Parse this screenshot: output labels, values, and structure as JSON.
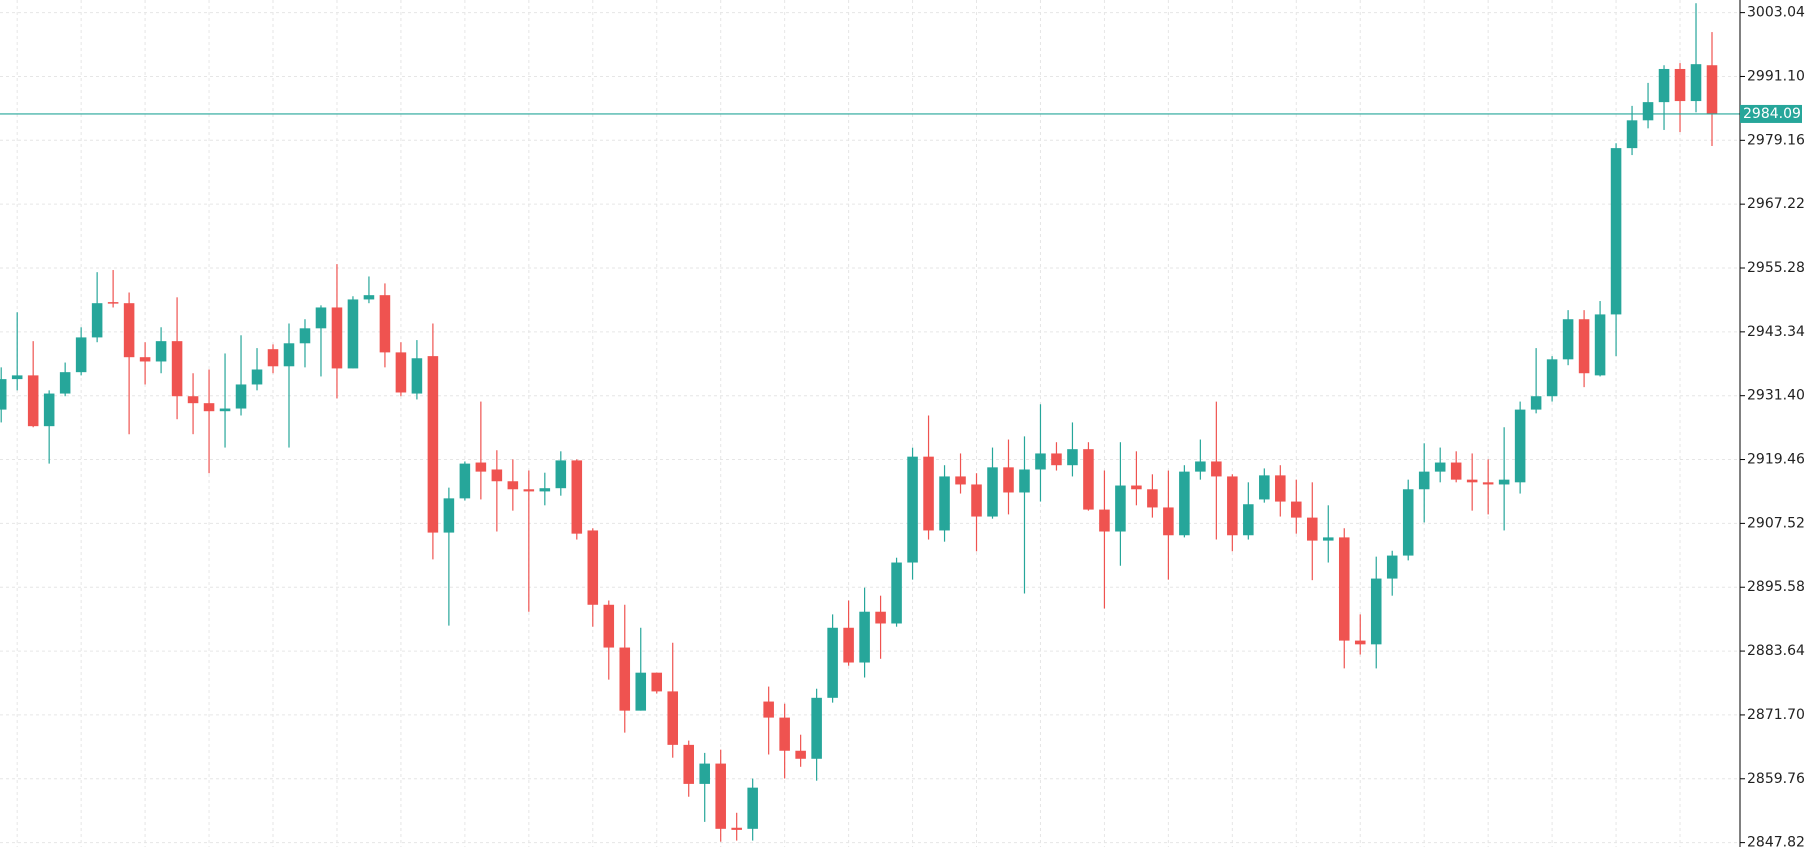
{
  "chart_data": {
    "type": "candlestick",
    "up_color": "#26a69a",
    "down_color": "#ef5350",
    "grid": true,
    "ylim": [
      2847.0,
      3005.4
    ],
    "yticks": [
      3003.04,
      {
        "value": 2991.1,
        "label": "2991.10"
      },
      2979.16,
      2967.22,
      2955.28,
      2943.34,
      {
        "value": 2931.4,
        "label": "2931.40"
      },
      2919.46,
      2907.52,
      2895.58,
      2883.64,
      {
        "value": 2871.7,
        "label": "2871.70"
      },
      2859.76,
      2847.82
    ],
    "current_price": 2984.09,
    "open": [
      2928.8,
      2934.5,
      2935.2,
      2925.7,
      2931.8,
      2935.8,
      2942.3,
      2948.9,
      2948.7,
      2938.6,
      2937.8,
      2941.6,
      2931.3,
      2930.0,
      2928.5,
      2929.0,
      2933.5,
      2940.1,
      2936.9,
      2941.2,
      2944.0,
      2947.9,
      2936.5,
      2949.4,
      2950.2,
      2939.5,
      2931.8,
      2938.8,
      2905.8,
      2912.2,
      2918.9,
      2917.6,
      2915.4,
      2913.9,
      2913.5,
      2914.1,
      2919.3,
      2906.2,
      2892.3,
      2884.3,
      2872.5,
      2879.6,
      2876.1,
      2866.1,
      2858.8,
      2862.6,
      2850.6,
      2850.4,
      2874.2,
      2871.2,
      2865.0,
      2863.5,
      2874.9,
      2888.0,
      2881.5,
      2891.0,
      2888.8,
      2900.2,
      2920.0,
      2906.2,
      2916.3,
      2914.8,
      2908.8,
      2918.0,
      2913.3,
      2917.6,
      2920.6,
      2918.4,
      2921.4,
      2910.1,
      2906.0,
      2914.6,
      2913.9,
      2910.5,
      2905.3,
      2917.2,
      2919.1,
      2916.3,
      2905.3,
      2912.0,
      2916.5,
      2911.6,
      2908.6,
      2904.3,
      2904.9,
      2885.6,
      2884.9,
      2897.2,
      2901.5,
      2913.9,
      2917.2,
      2918.9,
      2915.7,
      2915.2,
      2914.8,
      2915.2,
      2928.8,
      2931.3,
      2938.2,
      2945.7,
      2935.2,
      2946.6,
      2977.7,
      2982.9,
      2986.3,
      2992.5,
      2986.5,
      2993.2
    ],
    "high": [
      2936.7,
      2947.0,
      2941.6,
      2932.4,
      2937.6,
      2944.2,
      2954.5,
      2954.9,
      2950.7,
      2941.4,
      2944.2,
      2949.8,
      2935.6,
      2936.3,
      2939.3,
      2942.7,
      2940.3,
      2941.0,
      2944.9,
      2945.7,
      2948.3,
      2956.0,
      2950.0,
      2953.7,
      2952.4,
      2941.4,
      2941.8,
      2944.9,
      2914.2,
      2919.1,
      2930.3,
      2921.2,
      2919.5,
      2917.4,
      2917.0,
      2921.0,
      2919.5,
      2906.6,
      2893.1,
      2892.3,
      2888.0,
      2879.6,
      2885.2,
      2866.9,
      2864.6,
      2865.2,
      2853.4,
      2859.8,
      2877.0,
      2873.8,
      2868.0,
      2876.6,
      2890.5,
      2893.1,
      2895.5,
      2894.0,
      2901.1,
      2921.7,
      2927.7,
      2918.4,
      2920.6,
      2916.9,
      2921.7,
      2923.2,
      2923.8,
      2929.8,
      2922.7,
      2926.4,
      2922.7,
      2917.4,
      2922.7,
      2921.0,
      2916.7,
      2917.4,
      2918.4,
      2923.2,
      2930.3,
      2916.7,
      2915.2,
      2917.8,
      2918.4,
      2915.7,
      2915.2,
      2910.9,
      2906.6,
      2890.5,
      2901.3,
      2902.4,
      2915.7,
      2922.5,
      2921.7,
      2921.0,
      2920.6,
      2919.5,
      2925.5,
      2930.3,
      2940.3,
      2938.8,
      2947.4,
      2947.4,
      2949.1,
      2978.6,
      2985.6,
      2989.9,
      2993.2,
      2993.6,
      3004.8,
      2999.4
    ],
    "low": [
      2926.4,
      2932.4,
      2925.5,
      2918.7,
      2931.3,
      2935.2,
      2941.4,
      2947.9,
      2924.2,
      2933.5,
      2935.6,
      2927.0,
      2924.2,
      2916.9,
      2921.7,
      2927.7,
      2932.4,
      2935.6,
      2921.7,
      2936.7,
      2935.0,
      2930.9,
      2936.5,
      2948.7,
      2936.7,
      2931.3,
      2930.7,
      2900.8,
      2888.4,
      2911.8,
      2912.0,
      2906.0,
      2909.9,
      2891.0,
      2910.9,
      2912.7,
      2904.5,
      2888.2,
      2878.3,
      2868.4,
      2872.5,
      2875.7,
      2863.7,
      2856.4,
      2851.7,
      2848.0,
      2848.2,
      2848.2,
      2864.3,
      2859.8,
      2862.0,
      2859.4,
      2874.0,
      2880.9,
      2878.7,
      2882.2,
      2888.2,
      2897.0,
      2904.5,
      2904.1,
      2913.1,
      2902.3,
      2908.4,
      2909.2,
      2894.4,
      2911.6,
      2917.4,
      2916.3,
      2909.9,
      2891.6,
      2899.6,
      2910.9,
      2908.6,
      2897.0,
      2904.9,
      2915.7,
      2904.5,
      2902.3,
      2904.5,
      2911.4,
      2908.8,
      2905.6,
      2896.9,
      2900.2,
      2880.4,
      2883.0,
      2880.4,
      2894.0,
      2900.6,
      2907.7,
      2915.2,
      2915.2,
      2909.9,
      2909.2,
      2906.2,
      2913.1,
      2928.1,
      2930.3,
      2937.1,
      2933.0,
      2935.0,
      2938.8,
      2976.4,
      2981.4,
      2981.1,
      2980.7,
      2984.4,
      2978.1
    ],
    "close": [
      2934.5,
      2935.2,
      2925.7,
      2931.8,
      2935.8,
      2942.3,
      2948.7,
      2948.7,
      2938.6,
      2937.8,
      2941.6,
      2931.3,
      2930.0,
      2928.5,
      2929.0,
      2933.5,
      2936.3,
      2936.9,
      2941.2,
      2944.0,
      2947.9,
      2936.5,
      2949.4,
      2950.2,
      2939.5,
      2932.0,
      2938.4,
      2905.8,
      2912.2,
      2918.7,
      2917.2,
      2915.4,
      2913.9,
      2913.5,
      2914.1,
      2919.3,
      2905.6,
      2892.3,
      2884.3,
      2872.5,
      2879.6,
      2876.1,
      2866.1,
      2858.8,
      2862.6,
      2850.4,
      2850.2,
      2858.1,
      2871.2,
      2865.0,
      2863.5,
      2874.9,
      2888.0,
      2881.5,
      2891.0,
      2888.8,
      2900.2,
      2920.0,
      2906.2,
      2916.3,
      2914.8,
      2908.8,
      2918.0,
      2913.3,
      2917.6,
      2920.6,
      2918.4,
      2921.4,
      2910.1,
      2906.0,
      2914.6,
      2913.9,
      2910.5,
      2905.3,
      2917.2,
      2919.1,
      2916.3,
      2905.3,
      2911.1,
      2916.5,
      2911.6,
      2908.6,
      2904.3,
      2904.9,
      2885.6,
      2884.9,
      2897.2,
      2901.5,
      2913.9,
      2917.2,
      2918.9,
      2915.7,
      2915.2,
      2914.8,
      2915.7,
      2928.8,
      2931.3,
      2938.2,
      2945.7,
      2935.6,
      2946.6,
      2977.7,
      2982.9,
      2986.3,
      2992.5,
      2986.5,
      2993.4,
      2984.09
    ]
  }
}
